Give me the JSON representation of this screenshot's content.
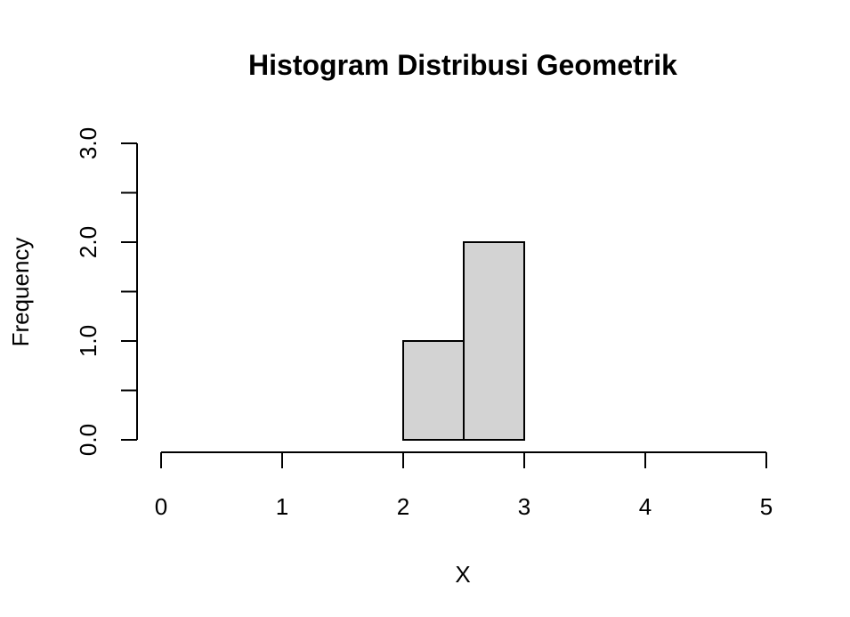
{
  "chart_data": {
    "type": "bar",
    "title": "Histogram Distribusi Geometrik",
    "xlabel": "X",
    "ylabel": "Frequency",
    "bins": [
      {
        "start": 2.0,
        "end": 2.5,
        "value": 1
      },
      {
        "start": 2.5,
        "end": 3.0,
        "value": 2
      }
    ],
    "xlim": [
      0,
      5
    ],
    "ylim": [
      0,
      3
    ],
    "x_ticks": [
      0,
      1,
      2,
      3,
      4,
      5
    ],
    "x_tick_labels": [
      "0",
      "1",
      "2",
      "3",
      "4",
      "5"
    ],
    "y_ticks": [
      0,
      0.5,
      1,
      1.5,
      2,
      2.5,
      3
    ],
    "y_tick_labels": [
      "0.0",
      "",
      "1.0",
      "",
      "2.0",
      "",
      "3.0"
    ],
    "bar_color": "#d3d3d3",
    "grid": false,
    "legend": "none"
  }
}
